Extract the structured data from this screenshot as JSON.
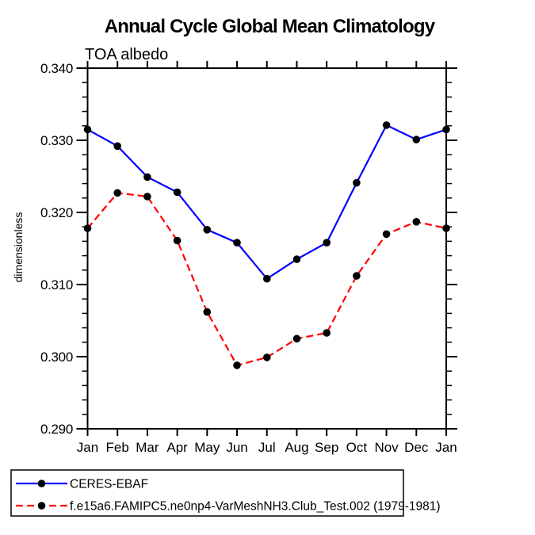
{
  "title": "Annual Cycle Global Mean Climatology",
  "subtitle": "TOA albedo",
  "ylabel": "dimensionless",
  "colors": {
    "obs_line": "#0000ff",
    "model_line": "#ff0000",
    "marker": "#000000",
    "axis": "#000000",
    "background": "#ffffff"
  },
  "legend": {
    "items": [
      {
        "label": "CERES-EBAF",
        "color": "#0000ff",
        "style": "solid",
        "marker": "black-dot"
      },
      {
        "label": "f.e15a6.FAMIPC5.ne0np4-VarMeshNH3.Club_Test.002 (1979-1981)",
        "color": "#ff0000",
        "style": "dashed",
        "marker": "black-dot"
      }
    ]
  },
  "chart_data": {
    "type": "line",
    "title": "Annual Cycle Global Mean Climatology",
    "subtitle": "TOA albedo",
    "xlabel": "",
    "ylabel": "dimensionless",
    "categories": [
      "Jan",
      "Feb",
      "Mar",
      "Apr",
      "May",
      "Jun",
      "Jul",
      "Aug",
      "Sep",
      "Oct",
      "Nov",
      "Dec",
      "Jan"
    ],
    "ylim": [
      0.29,
      0.34
    ],
    "ytick_step": 0.01,
    "yminor_step": 0.002,
    "ytick_labels": [
      "0.290",
      "0.300",
      "0.310",
      "0.320",
      "0.330",
      "0.340"
    ],
    "grid": false,
    "legend_position": "bottom-left-boxed",
    "series": [
      {
        "name": "CERES-EBAF",
        "color": "#0000ff",
        "line_style": "solid",
        "marker": "circle",
        "marker_color": "#000000",
        "values": [
          0.3315,
          0.3292,
          0.3249,
          0.3228,
          0.3176,
          0.3158,
          0.3108,
          0.3135,
          0.3158,
          0.3241,
          0.3321,
          0.3301,
          0.3315
        ]
      },
      {
        "name": "f.e15a6.FAMIPC5.ne0np4-VarMeshNH3.Club_Test.002 (1979-1981)",
        "color": "#ff0000",
        "line_style": "dashed",
        "marker": "circle",
        "marker_color": "#000000",
        "values": [
          0.3178,
          0.3227,
          0.3222,
          0.3161,
          0.3062,
          0.2988,
          0.2999,
          0.3025,
          0.3033,
          0.3112,
          0.317,
          0.3187,
          0.3178
        ]
      }
    ]
  }
}
